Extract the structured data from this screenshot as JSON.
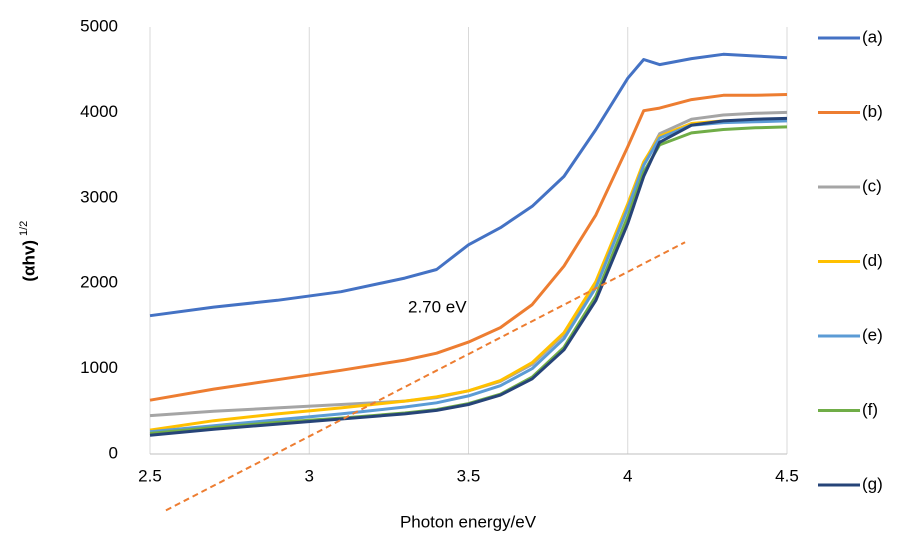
{
  "chart_data": {
    "type": "line",
    "x_label": "Photon energy/eV",
    "y_label": "(αhv)",
    "y_label_superscript": "1/2",
    "xlim": [
      2.5,
      4.5
    ],
    "xticks": [
      2.5,
      3,
      3.5,
      4,
      4.5
    ],
    "ylim": [
      0,
      5000
    ],
    "yticks": [
      0,
      1000,
      2000,
      3000,
      4000,
      5000
    ],
    "grid": "x",
    "legend": "right",
    "x": [
      2.5,
      2.7,
      2.9,
      3.1,
      3.3,
      3.4,
      3.5,
      3.6,
      3.7,
      3.8,
      3.9,
      4.0,
      4.05,
      4.1,
      4.2,
      4.3,
      4.4,
      4.5
    ],
    "series": [
      {
        "name": "(a)",
        "color": "#4472c4",
        "values": [
          1620,
          1720,
          1800,
          1900,
          2060,
          2160,
          2450,
          2650,
          2900,
          3250,
          3800,
          4400,
          4620,
          4560,
          4630,
          4680,
          4660,
          4640
        ]
      },
      {
        "name": "(b)",
        "color": "#ed7d31",
        "values": [
          630,
          760,
          870,
          980,
          1100,
          1180,
          1310,
          1480,
          1750,
          2200,
          2800,
          3600,
          4020,
          4050,
          4150,
          4200,
          4200,
          4210
        ]
      },
      {
        "name": "(c)",
        "color": "#a5a5a5",
        "values": [
          450,
          500,
          540,
          580,
          620,
          660,
          740,
          850,
          1050,
          1400,
          2000,
          2900,
          3400,
          3750,
          3920,
          3970,
          3990,
          4000
        ]
      },
      {
        "name": "(d)",
        "color": "#ffc000",
        "values": [
          280,
          390,
          470,
          540,
          620,
          670,
          740,
          860,
          1070,
          1420,
          2020,
          2930,
          3420,
          3720,
          3870,
          3900,
          3910,
          3920
        ]
      },
      {
        "name": "(e)",
        "color": "#5b9bd5",
        "values": [
          260,
          330,
          400,
          470,
          550,
          600,
          680,
          800,
          1000,
          1350,
          1950,
          2880,
          3380,
          3700,
          3850,
          3880,
          3890,
          3900
        ]
      },
      {
        "name": "(f)",
        "color": "#70ad47",
        "values": [
          240,
          310,
          370,
          420,
          480,
          520,
          590,
          700,
          900,
          1250,
          1850,
          2780,
          3300,
          3620,
          3760,
          3800,
          3820,
          3830
        ]
      },
      {
        "name": "(g)",
        "color": "#264478",
        "values": [
          220,
          290,
          350,
          410,
          470,
          510,
          580,
          690,
          880,
          1220,
          1800,
          2700,
          3250,
          3650,
          3850,
          3900,
          3920,
          3930
        ]
      }
    ],
    "tangent": {
      "x": [
        2.55,
        4.18
      ],
      "values": [
        -660,
        2480
      ],
      "color": "#ed7d31"
    },
    "annotation": {
      "text": "2.70 eV",
      "color": "#ed7d31"
    }
  }
}
